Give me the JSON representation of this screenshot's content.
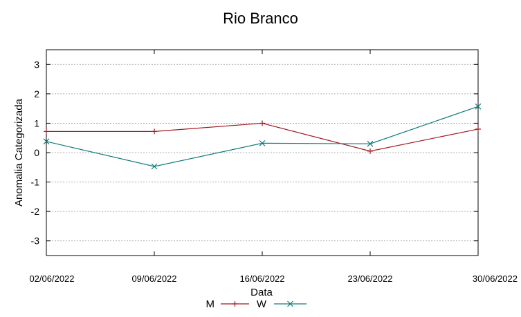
{
  "chart_data": {
    "type": "line",
    "title": "Rio Branco",
    "xlabel": "Data",
    "ylabel": "Anomalia Categorizada",
    "categories": [
      "02/06/2022",
      "09/06/2022",
      "16/06/2022",
      "23/06/2022",
      "30/06/2022"
    ],
    "yticks": [
      "3",
      "2",
      "1",
      "0",
      "-1",
      "-2",
      "-3"
    ],
    "ylim": [
      -3.5,
      3.5
    ],
    "grid": true,
    "legend": "bottom-center",
    "series": [
      {
        "name": "M",
        "color": "#a0161e",
        "marker": "plus",
        "values": [
          0.72,
          0.72,
          1.0,
          0.05,
          0.8
        ]
      },
      {
        "name": "W",
        "color": "#0e7c7b",
        "marker": "cross",
        "values": [
          0.38,
          -0.47,
          0.32,
          0.3,
          1.57
        ]
      }
    ]
  }
}
